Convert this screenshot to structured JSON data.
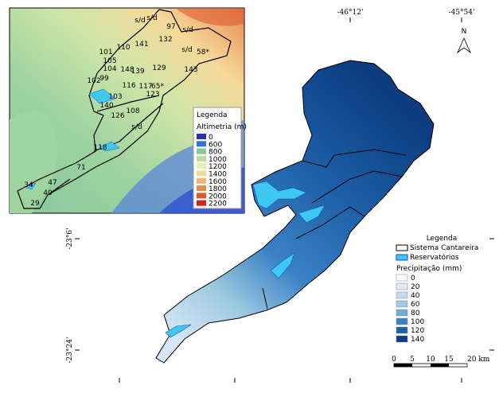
{
  "map": {
    "coordinate_labels": [
      "-46°12'",
      "-45°54'",
      "-23°6'",
      "-23°24'"
    ],
    "north": "N",
    "legend": {
      "title": "Legenda",
      "boundary": "Sistema Cantareira",
      "reservoirs": "Reservatórios",
      "classes_title": "Precipitação (mm)",
      "classes": [
        {
          "label": "0",
          "color": "#f7fbff"
        },
        {
          "label": "20",
          "color": "#deebf7"
        },
        {
          "label": "40",
          "color": "#c6dbef"
        },
        {
          "label": "60",
          "color": "#9ecae1"
        },
        {
          "label": "80",
          "color": "#6baed6"
        },
        {
          "label": "100",
          "color": "#3b83c4"
        },
        {
          "label": "120",
          "color": "#1f63aa"
        },
        {
          "label": "140",
          "color": "#0b3d80"
        }
      ]
    },
    "scale_bar": [
      "0",
      "5",
      "10",
      "15",
      "20 km"
    ]
  },
  "inset": {
    "legend": {
      "title": "Legenda",
      "classes_title": "Altimetria (m)",
      "classes": [
        {
          "label": "0",
          "color": "#2630b8"
        },
        {
          "label": "600",
          "color": "#3a6fe0"
        },
        {
          "label": "800",
          "color": "#86c79d"
        },
        {
          "label": "1000",
          "color": "#b6dca0"
        },
        {
          "label": "1200",
          "color": "#e6efb0"
        },
        {
          "label": "1400",
          "color": "#f5d99a"
        },
        {
          "label": "1600",
          "color": "#f2b474"
        },
        {
          "label": "1800",
          "color": "#e98a4f"
        },
        {
          "label": "2000",
          "color": "#dd5a33"
        },
        {
          "label": "2200",
          "color": "#d2231f"
        }
      ]
    },
    "stations": [
      "s/d",
      "97",
      "132",
      "141",
      "110",
      "101",
      "105",
      "104",
      "148",
      "139",
      "129",
      "s/d",
      "58*",
      "143",
      "102",
      "99",
      "116",
      "117",
      "65*",
      "123",
      "103",
      "140",
      "108",
      "126",
      "s/d",
      "118",
      "71",
      "47",
      "34",
      "40",
      "29",
      "s/d",
      "s/d"
    ]
  }
}
